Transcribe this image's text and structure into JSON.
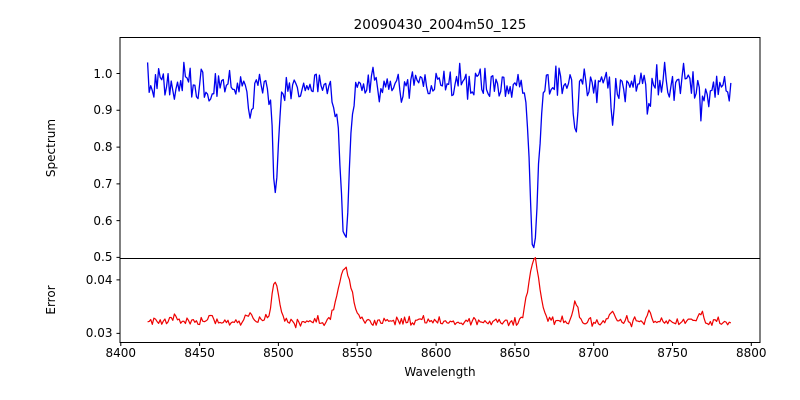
{
  "chart_data": {
    "type": "line",
    "title": "20090430_2004m50_125",
    "xlabel": "Wavelength",
    "grid": false,
    "legend": null,
    "xlim": [
      8399.5,
      8805.5
    ],
    "xticks": [
      8400,
      8450,
      8500,
      8550,
      8600,
      8650,
      8700,
      8750,
      8800
    ],
    "xtick_labels": [
      "8400",
      "8450",
      "8500",
      "8550",
      "8600",
      "8650",
      "8700",
      "8750",
      "8800"
    ],
    "sampling": {
      "x_start": 8417,
      "x_end": 8787,
      "x_step": 1
    },
    "noise_seed": 7,
    "panels": [
      {
        "name": "spectrum",
        "ylabel": "Spectrum",
        "line_color": "#0000ee",
        "ylim": [
          0.497,
          1.098
        ],
        "yticks": [
          0.5,
          0.6,
          0.7,
          0.8,
          0.9,
          1.0
        ],
        "ytick_labels": [
          "0.5",
          "0.6",
          "0.7",
          "0.8",
          "0.9",
          "1.0"
        ],
        "model": {
          "continuum": 0.97,
          "relative_noise_sigma": 0.023,
          "absorption_lines": [
            {
              "center": 8434.0,
              "depth": 0.055,
              "sigma": 1.0
            },
            {
              "center": 8456.5,
              "depth": 0.045,
              "sigma": 0.9
            },
            {
              "center": 8482.0,
              "depth": 0.095,
              "sigma": 1.1
            },
            {
              "center": 8498.0,
              "depth": 0.3,
              "sigma": 1.6
            },
            {
              "center": 8542.1,
              "depth": 0.4,
              "sigma": 2.8
            },
            {
              "center": 8662.1,
              "depth": 0.455,
              "sigma": 2.4
            },
            {
              "center": 8688.5,
              "depth": 0.145,
              "sigma": 1.1
            },
            {
              "center": 8712.0,
              "depth": 0.08,
              "sigma": 1.0
            },
            {
              "center": 8735.0,
              "depth": 0.07,
              "sigma": 1.0
            },
            {
              "center": 8768.0,
              "depth": 0.08,
              "sigma": 1.0
            }
          ]
        }
      },
      {
        "name": "error",
        "ylabel": "Error",
        "line_color": "#ee0000",
        "ylim": [
          0.0283,
          0.044
        ],
        "yticks": [
          0.03,
          0.04
        ],
        "ytick_labels": [
          "0.03",
          "0.04"
        ],
        "model": {
          "baseline": 0.0322,
          "noise_sigma": 0.00042,
          "line_coupling": 0.0248,
          "line_width_scale": 1.5
        }
      }
    ],
    "notable_features": {
      "continuum_level": 0.97,
      "error_baseline": 0.032,
      "ca_ii_triplet": [
        {
          "wavelength": 8498,
          "flux_minimum": 0.67,
          "error_peak": 0.039
        },
        {
          "wavelength": 8542,
          "flux_minimum": 0.575,
          "error_peak": 0.042
        },
        {
          "wavelength": 8662,
          "flux_minimum": 0.52,
          "error_peak": 0.0435
        }
      ]
    }
  }
}
